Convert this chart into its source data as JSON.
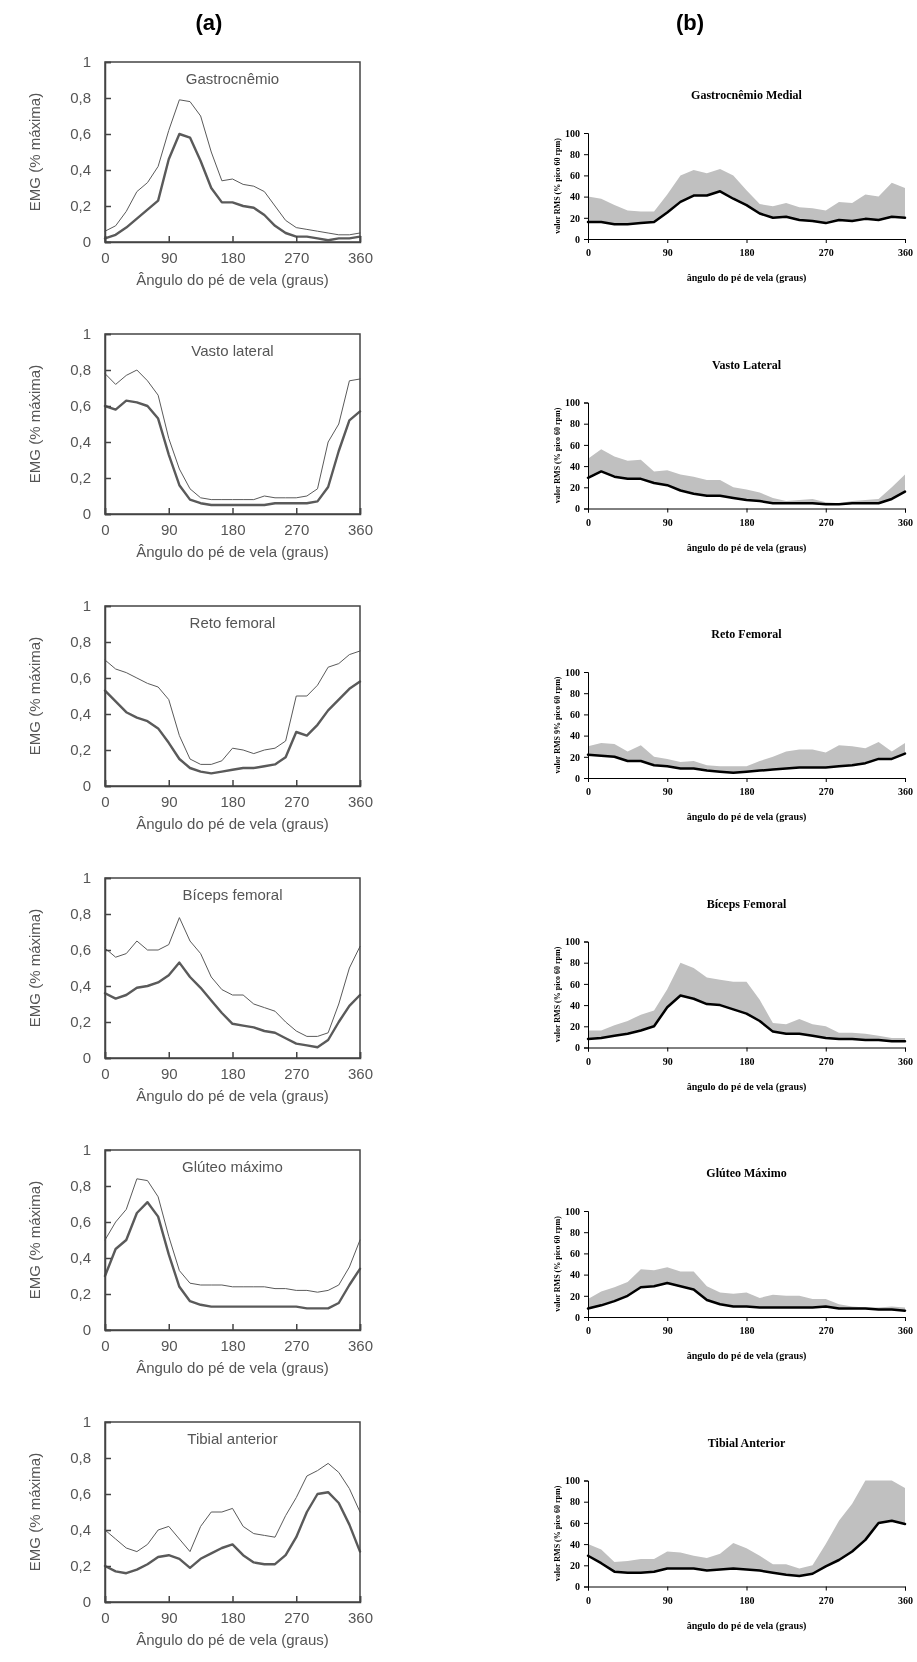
{
  "chart_data": [
    {
      "type": "line",
      "title": "Gastrocnêmio",
      "xlabel": "Ângulo do pé de vela (graus)",
      "ylabel": "EMG (% máxima)",
      "annotations": [
        "(a)"
      ],
      "x": [
        0,
        15,
        30,
        45,
        60,
        75,
        90,
        105,
        120,
        135,
        150,
        165,
        180,
        195,
        210,
        225,
        240,
        255,
        270,
        285,
        300,
        315,
        330,
        345,
        360
      ],
      "xlim": [
        0,
        360
      ],
      "xticks": [
        0,
        90,
        180,
        270,
        360
      ],
      "ylim": [
        0,
        1
      ],
      "yticks": [
        0,
        {
          "value": 0.2,
          "label": "0,2"
        },
        {
          "value": 0.4,
          "label": "0,4"
        },
        {
          "value": 0.6,
          "label": "0,6"
        },
        {
          "value": 0.8,
          "label": "0,8"
        },
        1
      ],
      "series": [
        {
          "color": "#5a5a5a",
          "values": [
            0.06,
            0.09,
            0.17,
            0.28,
            0.33,
            0.42,
            0.62,
            0.79,
            0.78,
            0.7,
            0.5,
            0.34,
            0.35,
            0.32,
            0.31,
            0.28,
            0.2,
            0.12,
            0.08,
            0.07,
            0.06,
            0.05,
            0.04,
            0.04,
            0.05
          ]
        },
        {
          "color": "#5a5a5a",
          "values": [
            0.02,
            0.04,
            0.08,
            0.13,
            0.18,
            0.23,
            0.46,
            0.6,
            0.58,
            0.45,
            0.3,
            0.22,
            0.22,
            0.2,
            0.19,
            0.15,
            0.09,
            0.05,
            0.03,
            0.03,
            0.02,
            0.01,
            0.02,
            0.02,
            0.03
          ]
        }
      ]
    },
    {
      "type": "line",
      "title": "Gastrocnêmio Medial",
      "xlabel": "ângulo do pé de vela (graus)",
      "ylabel": "valor RMS (% pico 60 rpm)",
      "annotations": [
        "(b)"
      ],
      "x": [
        0,
        15,
        30,
        45,
        60,
        75,
        90,
        105,
        120,
        135,
        150,
        165,
        180,
        195,
        210,
        225,
        240,
        255,
        270,
        285,
        300,
        315,
        330,
        345,
        360
      ],
      "xlim": [
        0,
        360
      ],
      "xticks": [
        0,
        90,
        180,
        270,
        360
      ],
      "ylim": [
        0,
        100
      ],
      "yticks": [
        0,
        20,
        40,
        60,
        80,
        100
      ],
      "series": [
        {
          "color": "#000000",
          "values": [
            16,
            16,
            14,
            14,
            15,
            16,
            25,
            35,
            41,
            41,
            45,
            38,
            32,
            24,
            20,
            21,
            18,
            17,
            15,
            18,
            17,
            19,
            18,
            21,
            20
          ],
          "lower": [
            16,
            16,
            14,
            14,
            15,
            16,
            25,
            35,
            41,
            41,
            45,
            38,
            32,
            24,
            20,
            21,
            18,
            17,
            15,
            18,
            17,
            19,
            18,
            21,
            20
          ],
          "upper": [
            40,
            38,
            32,
            27,
            26,
            26,
            42,
            60,
            65,
            62,
            66,
            60,
            46,
            33,
            31,
            34,
            30,
            29,
            27,
            35,
            34,
            42,
            40,
            53,
            48
          ]
        }
      ]
    },
    {
      "type": "line",
      "title": "Vasto lateral",
      "xlabel": "Ângulo do pé de vela (graus)",
      "ylabel": "EMG (% máxima)",
      "x": [
        0,
        15,
        30,
        45,
        60,
        75,
        90,
        105,
        120,
        135,
        150,
        165,
        180,
        195,
        210,
        225,
        240,
        255,
        270,
        285,
        300,
        315,
        330,
        345,
        360
      ],
      "xlim": [
        0,
        360
      ],
      "xticks": [
        0,
        90,
        180,
        270,
        360
      ],
      "ylim": [
        0,
        1
      ],
      "yticks": [
        0,
        {
          "value": 0.2,
          "label": "0,2"
        },
        {
          "value": 0.4,
          "label": "0,4"
        },
        {
          "value": 0.6,
          "label": "0,6"
        },
        {
          "value": 0.8,
          "label": "0,8"
        },
        1
      ],
      "series": [
        {
          "color": "#5a5a5a",
          "values": [
            0.78,
            0.72,
            0.77,
            0.8,
            0.74,
            0.66,
            0.42,
            0.25,
            0.14,
            0.09,
            0.08,
            0.08,
            0.08,
            0.08,
            0.08,
            0.1,
            0.09,
            0.09,
            0.09,
            0.1,
            0.14,
            0.4,
            0.5,
            0.74,
            0.75
          ]
        },
        {
          "color": "#5a5a5a",
          "values": [
            0.6,
            0.58,
            0.63,
            0.62,
            0.6,
            0.53,
            0.33,
            0.16,
            0.08,
            0.06,
            0.05,
            0.05,
            0.05,
            0.05,
            0.05,
            0.05,
            0.06,
            0.06,
            0.06,
            0.06,
            0.07,
            0.15,
            0.35,
            0.52,
            0.57
          ]
        }
      ]
    },
    {
      "type": "line",
      "title": "Vasto Lateral",
      "xlabel": "ângulo do pé de vela (graus)",
      "ylabel": "valor RMS (% pico 60 rpm)",
      "x": [
        0,
        15,
        30,
        45,
        60,
        75,
        90,
        105,
        120,
        135,
        150,
        165,
        180,
        195,
        210,
        225,
        240,
        255,
        270,
        285,
        300,
        315,
        330,
        345,
        360
      ],
      "xlim": [
        0,
        360
      ],
      "xticks": [
        0,
        90,
        180,
        270,
        360
      ],
      "ylim": [
        0,
        100
      ],
      "yticks": [
        0,
        20,
        40,
        60,
        80,
        100
      ],
      "series": [
        {
          "color": "#000000",
          "values": [
            29,
            35,
            30,
            28,
            28,
            24,
            22,
            17,
            14,
            12,
            12,
            10,
            8,
            7,
            5,
            5,
            5,
            5,
            4,
            4,
            5,
            5,
            5,
            9,
            16
          ],
          "lower": [
            29,
            35,
            30,
            28,
            28,
            24,
            22,
            17,
            14,
            12,
            12,
            10,
            8,
            7,
            5,
            5,
            5,
            5,
            4,
            4,
            5,
            5,
            5,
            9,
            16
          ],
          "upper": [
            47,
            56,
            49,
            45,
            46,
            35,
            36,
            32,
            30,
            27,
            27,
            20,
            18,
            15,
            10,
            7,
            8,
            9,
            6,
            5,
            7,
            8,
            9,
            20,
            32
          ]
        }
      ]
    },
    {
      "type": "line",
      "title": "Reto femoral",
      "xlabel": "Ângulo do pé de vela (graus)",
      "ylabel": "EMG (% máxima)",
      "x": [
        0,
        15,
        30,
        45,
        60,
        75,
        90,
        105,
        120,
        135,
        150,
        165,
        180,
        195,
        210,
        225,
        240,
        255,
        270,
        285,
        300,
        315,
        330,
        345,
        360
      ],
      "xlim": [
        0,
        360
      ],
      "xticks": [
        0,
        90,
        180,
        270,
        360
      ],
      "ylim": [
        0,
        1
      ],
      "yticks": [
        0,
        {
          "value": 0.2,
          "label": "0,2"
        },
        {
          "value": 0.4,
          "label": "0,4"
        },
        {
          "value": 0.6,
          "label": "0,6"
        },
        {
          "value": 0.8,
          "label": "0,8"
        },
        1
      ],
      "series": [
        {
          "color": "#5a5a5a",
          "values": [
            0.7,
            0.65,
            0.63,
            0.6,
            0.57,
            0.55,
            0.48,
            0.28,
            0.15,
            0.12,
            0.12,
            0.14,
            0.21,
            0.2,
            0.18,
            0.2,
            0.21,
            0.25,
            0.5,
            0.5,
            0.56,
            0.66,
            0.68,
            0.73,
            0.75
          ]
        },
        {
          "color": "#5a5a5a",
          "values": [
            0.53,
            0.47,
            0.41,
            0.38,
            0.36,
            0.32,
            0.24,
            0.15,
            0.1,
            0.08,
            0.07,
            0.08,
            0.09,
            0.1,
            0.1,
            0.11,
            0.12,
            0.16,
            0.3,
            0.28,
            0.34,
            0.42,
            0.48,
            0.54,
            0.58
          ]
        }
      ]
    },
    {
      "type": "line",
      "title": "Reto Femoral",
      "xlabel": "ângulo do pé de vela (graus)",
      "ylabel": "valor RMS 9% pico 60 rpm)",
      "x": [
        0,
        15,
        30,
        45,
        60,
        75,
        90,
        105,
        120,
        135,
        150,
        165,
        180,
        195,
        210,
        225,
        240,
        255,
        270,
        285,
        300,
        315,
        330,
        345,
        360
      ],
      "xlim": [
        0,
        360
      ],
      "xticks": [
        0,
        90,
        180,
        270,
        360
      ],
      "ylim": [
        0,
        100
      ],
      "yticks": [
        0,
        20,
        40,
        60,
        80,
        100
      ],
      "series": [
        {
          "color": "#000000",
          "values": [
            22,
            21,
            20,
            16,
            16,
            12,
            11,
            9,
            9,
            7,
            6,
            5,
            6,
            7,
            8,
            9,
            10,
            10,
            10,
            11,
            12,
            14,
            18,
            18,
            23
          ],
          "lower": [
            22,
            21,
            20,
            16,
            16,
            12,
            11,
            9,
            9,
            7,
            6,
            5,
            6,
            7,
            8,
            9,
            10,
            10,
            10,
            11,
            12,
            14,
            18,
            18,
            23
          ],
          "upper": [
            30,
            33,
            32,
            25,
            31,
            20,
            18,
            15,
            16,
            12,
            11,
            11,
            11,
            16,
            20,
            25,
            27,
            27,
            24,
            31,
            30,
            28,
            34,
            25,
            33
          ]
        }
      ]
    },
    {
      "type": "line",
      "title": "Bíceps femoral",
      "xlabel": "Ângulo do pé de vela (graus)",
      "ylabel": "EMG (% máxima)",
      "x": [
        0,
        15,
        30,
        45,
        60,
        75,
        90,
        105,
        120,
        135,
        150,
        165,
        180,
        195,
        210,
        225,
        240,
        255,
        270,
        285,
        300,
        315,
        330,
        345,
        360
      ],
      "xlim": [
        0,
        360
      ],
      "xticks": [
        0,
        90,
        180,
        270,
        360
      ],
      "ylim": [
        0,
        1
      ],
      "yticks": [
        0,
        {
          "value": 0.2,
          "label": "0,2"
        },
        {
          "value": 0.4,
          "label": "0,4"
        },
        {
          "value": 0.6,
          "label": "0,6"
        },
        {
          "value": 0.8,
          "label": "0,8"
        },
        1
      ],
      "series": [
        {
          "color": "#5a5a5a",
          "values": [
            0.61,
            0.56,
            0.58,
            0.65,
            0.6,
            0.6,
            0.63,
            0.78,
            0.65,
            0.58,
            0.45,
            0.38,
            0.35,
            0.35,
            0.3,
            0.28,
            0.26,
            0.2,
            0.15,
            0.12,
            0.12,
            0.14,
            0.3,
            0.5,
            0.62
          ]
        },
        {
          "color": "#5a5a5a",
          "values": [
            0.36,
            0.33,
            0.35,
            0.39,
            0.4,
            0.42,
            0.46,
            0.53,
            0.45,
            0.39,
            0.32,
            0.25,
            0.19,
            0.18,
            0.17,
            0.15,
            0.14,
            0.11,
            0.08,
            0.07,
            0.06,
            0.1,
            0.2,
            0.29,
            0.35
          ]
        }
      ]
    },
    {
      "type": "line",
      "title": "Bíceps Femoral",
      "xlabel": "ângulo do pé de vela (graus)",
      "ylabel": "valor RMS (% pico 60 rpm)",
      "x": [
        0,
        15,
        30,
        45,
        60,
        75,
        90,
        105,
        120,
        135,
        150,
        165,
        180,
        195,
        210,
        225,
        240,
        255,
        270,
        285,
        300,
        315,
        330,
        345,
        360
      ],
      "xlim": [
        0,
        360
      ],
      "xticks": [
        0,
        90,
        180,
        270,
        360
      ],
      "ylim": [
        0,
        100
      ],
      "yticks": [
        0,
        20,
        40,
        60,
        80,
        100
      ],
      "series": [
        {
          "color": "#000000",
          "values": [
            8,
            9,
            11,
            13,
            16,
            20,
            38,
            49,
            46,
            41,
            40,
            36,
            32,
            25,
            15,
            13,
            13,
            11,
            9,
            8,
            8,
            7,
            7,
            6,
            6
          ],
          "lower": [
            8,
            9,
            11,
            13,
            16,
            20,
            38,
            49,
            46,
            41,
            40,
            36,
            32,
            25,
            15,
            13,
            13,
            11,
            9,
            8,
            8,
            7,
            7,
            6,
            6
          ],
          "upper": [
            16,
            16,
            21,
            25,
            31,
            35,
            55,
            80,
            75,
            66,
            64,
            62,
            62,
            45,
            23,
            22,
            27,
            22,
            20,
            14,
            14,
            13,
            11,
            9,
            9
          ]
        }
      ]
    },
    {
      "type": "line",
      "title": "Glúteo máximo",
      "xlabel": "Ângulo do pé de vela (graus)",
      "ylabel": "EMG (% máxima)",
      "x": [
        0,
        15,
        30,
        45,
        60,
        75,
        90,
        105,
        120,
        135,
        150,
        165,
        180,
        195,
        210,
        225,
        240,
        255,
        270,
        285,
        300,
        315,
        330,
        345,
        360
      ],
      "xlim": [
        0,
        360
      ],
      "xticks": [
        0,
        90,
        180,
        270,
        360
      ],
      "ylim": [
        0,
        1
      ],
      "yticks": [
        0,
        {
          "value": 0.2,
          "label": "0,2"
        },
        {
          "value": 0.4,
          "label": "0,4"
        },
        {
          "value": 0.6,
          "label": "0,6"
        },
        {
          "value": 0.8,
          "label": "0,8"
        },
        1
      ],
      "series": [
        {
          "color": "#5a5a5a",
          "values": [
            0.5,
            0.6,
            0.67,
            0.84,
            0.83,
            0.74,
            0.52,
            0.33,
            0.26,
            0.25,
            0.25,
            0.25,
            0.24,
            0.24,
            0.24,
            0.24,
            0.23,
            0.23,
            0.22,
            0.22,
            0.21,
            0.22,
            0.25,
            0.35,
            0.5
          ]
        },
        {
          "color": "#5a5a5a",
          "values": [
            0.3,
            0.45,
            0.5,
            0.65,
            0.71,
            0.63,
            0.42,
            0.24,
            0.16,
            0.14,
            0.13,
            0.13,
            0.13,
            0.13,
            0.13,
            0.13,
            0.13,
            0.13,
            0.13,
            0.12,
            0.12,
            0.12,
            0.15,
            0.25,
            0.34
          ]
        }
      ]
    },
    {
      "type": "line",
      "title": "Glúteo Máximo",
      "xlabel": "ângulo do pé de vela (graus)",
      "ylabel": "valor RMS (% pico 60 rpm)",
      "x": [
        0,
        15,
        30,
        45,
        60,
        75,
        90,
        105,
        120,
        135,
        150,
        165,
        180,
        195,
        210,
        225,
        240,
        255,
        270,
        285,
        300,
        315,
        330,
        345,
        360
      ],
      "xlim": [
        0,
        360
      ],
      "xticks": [
        0,
        90,
        180,
        270,
        360
      ],
      "ylim": [
        0,
        100
      ],
      "yticks": [
        0,
        20,
        40,
        60,
        80,
        100
      ],
      "series": [
        {
          "color": "#000000",
          "values": [
            8,
            11,
            15,
            20,
            28,
            29,
            32,
            29,
            26,
            16,
            12,
            10,
            10,
            9,
            9,
            9,
            9,
            9,
            10,
            8,
            8,
            8,
            7,
            7,
            6
          ],
          "lower": [
            8,
            11,
            15,
            20,
            28,
            29,
            32,
            29,
            26,
            16,
            12,
            10,
            10,
            9,
            9,
            9,
            9,
            9,
            10,
            8,
            8,
            8,
            7,
            7,
            6
          ],
          "upper": [
            17,
            24,
            28,
            33,
            45,
            44,
            47,
            43,
            43,
            29,
            23,
            22,
            23,
            18,
            21,
            20,
            20,
            17,
            17,
            12,
            10,
            9,
            9,
            10,
            9
          ]
        }
      ]
    },
    {
      "type": "line",
      "title": "Tibial anterior",
      "xlabel": "Ângulo do pé de vela (graus)",
      "ylabel": "EMG (% máxima)",
      "x": [
        0,
        15,
        30,
        45,
        60,
        75,
        90,
        105,
        120,
        135,
        150,
        165,
        180,
        195,
        210,
        225,
        240,
        255,
        270,
        285,
        300,
        315,
        330,
        345,
        360
      ],
      "xlim": [
        0,
        360
      ],
      "xticks": [
        0,
        90,
        180,
        270,
        360
      ],
      "ylim": [
        0,
        1
      ],
      "yticks": [
        0,
        {
          "value": 0.2,
          "label": "0,2"
        },
        {
          "value": 0.4,
          "label": "0,4"
        },
        {
          "value": 0.6,
          "label": "0,6"
        },
        {
          "value": 0.8,
          "label": "0,8"
        },
        1
      ],
      "series": [
        {
          "color": "#5a5a5a",
          "values": [
            0.4,
            0.35,
            0.3,
            0.28,
            0.32,
            0.4,
            0.42,
            0.35,
            0.28,
            0.42,
            0.5,
            0.5,
            0.52,
            0.42,
            0.38,
            0.37,
            0.36,
            0.48,
            0.58,
            0.7,
            0.73,
            0.77,
            0.72,
            0.63,
            0.5
          ]
        },
        {
          "color": "#5a5a5a",
          "values": [
            0.2,
            0.17,
            0.16,
            0.18,
            0.21,
            0.25,
            0.26,
            0.24,
            0.19,
            0.24,
            0.27,
            0.3,
            0.32,
            0.26,
            0.22,
            0.21,
            0.21,
            0.26,
            0.36,
            0.5,
            0.6,
            0.61,
            0.55,
            0.43,
            0.28
          ]
        }
      ]
    },
    {
      "type": "line",
      "title": "Tibial Anterior",
      "xlabel": "ângulo do pé de vela (graus)",
      "ylabel": "valor RMS (% pico 60 rpm)",
      "x": [
        0,
        15,
        30,
        45,
        60,
        75,
        90,
        105,
        120,
        135,
        150,
        165,
        180,
        195,
        210,
        225,
        240,
        255,
        270,
        285,
        300,
        315,
        330,
        345,
        360
      ],
      "xlim": [
        0,
        360
      ],
      "xticks": [
        0,
        90,
        180,
        270,
        360
      ],
      "ylim": [
        0,
        100
      ],
      "yticks": [
        0,
        20,
        40,
        60,
        80,
        100
      ],
      "series": [
        {
          "color": "#000000",
          "values": [
            29,
            22,
            14,
            13,
            13,
            14,
            17,
            17,
            17,
            15,
            16,
            17,
            16,
            15,
            13,
            11,
            10,
            12,
            19,
            25,
            33,
            44,
            60,
            62,
            59
          ],
          "lower": [
            29,
            22,
            14,
            13,
            13,
            14,
            17,
            17,
            17,
            15,
            16,
            17,
            16,
            15,
            13,
            11,
            10,
            12,
            19,
            25,
            33,
            44,
            60,
            62,
            59
          ],
          "upper": [
            40,
            35,
            23,
            24,
            26,
            26,
            33,
            32,
            29,
            27,
            31,
            41,
            36,
            29,
            21,
            21,
            17,
            20,
            40,
            62,
            78,
            100,
            100,
            100,
            93
          ]
        }
      ]
    }
  ]
}
